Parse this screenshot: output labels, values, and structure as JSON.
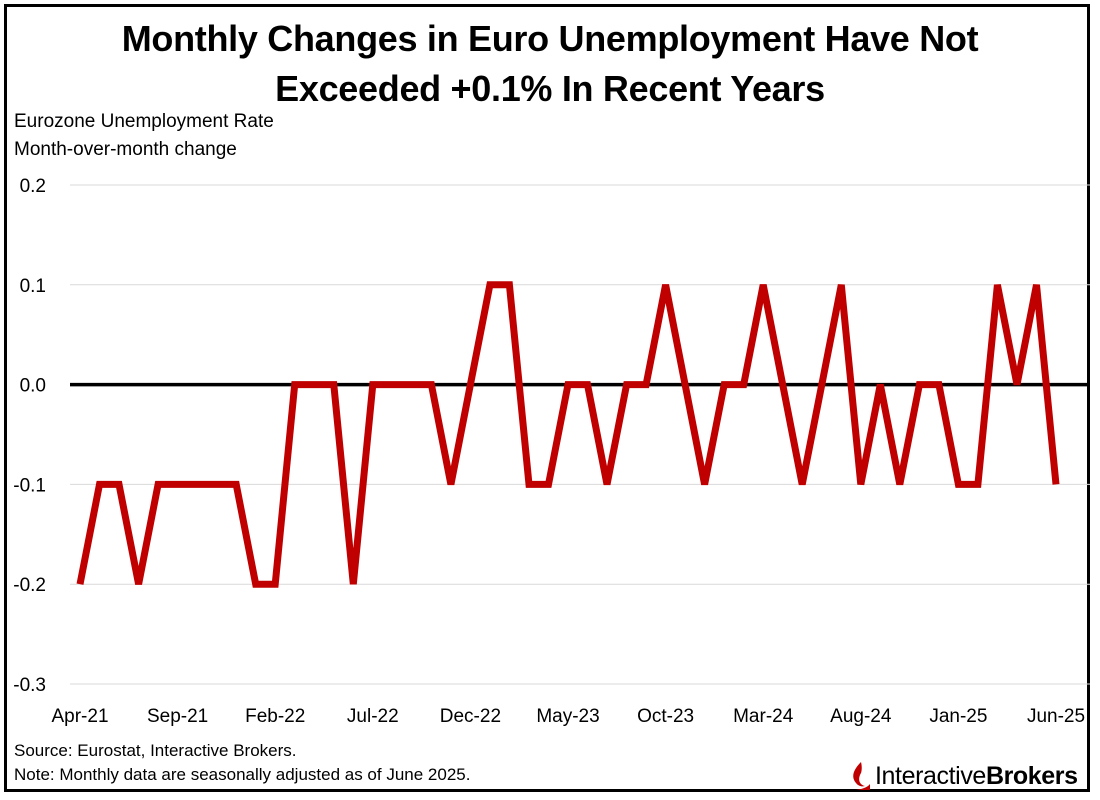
{
  "title_line1": "Monthly Changes in Euro Unemployment Have Not",
  "title_line2": "Exceeded +0.1% In Recent Years",
  "subtitle_line1": "Eurozone Unemployment Rate",
  "subtitle_line2": "Month-over-month change",
  "source": "Source: Eurostat, Interactive Brokers.",
  "note": "Note: Monthly data are seasonally adjusted as of June 2025.",
  "logo": {
    "part1": "Interactive",
    "part2": "Brokers"
  },
  "colors": {
    "line": "#c00000",
    "zero_line": "#000000",
    "grid": "#d9d9d9"
  },
  "chart_data": {
    "type": "line",
    "ylim": [
      -0.3,
      0.2
    ],
    "yticks": [
      0.2,
      0.1,
      0.0,
      -0.1,
      -0.2,
      -0.3
    ],
    "ytick_labels": [
      "0.2",
      "0.1",
      "0.0",
      "-0.1",
      "-0.2",
      "-0.3"
    ],
    "xtick_labels": [
      "Apr-21",
      "Sep-21",
      "Feb-22",
      "Jul-22",
      "Dec-22",
      "May-23",
      "Oct-23",
      "Mar-24",
      "Aug-24",
      "Jan-25",
      "Jun-25"
    ],
    "xtick_index": [
      0,
      5,
      10,
      15,
      20,
      25,
      30,
      35,
      40,
      45,
      50
    ],
    "series": [
      {
        "name": "Eurozone Unemployment Rate, month-over-month change",
        "x": [
          "Apr-21",
          "May-21",
          "Jun-21",
          "Jul-21",
          "Aug-21",
          "Sep-21",
          "Oct-21",
          "Nov-21",
          "Dec-21",
          "Jan-22",
          "Feb-22",
          "Mar-22",
          "Apr-22",
          "May-22",
          "Jun-22",
          "Jul-22",
          "Aug-22",
          "Sep-22",
          "Oct-22",
          "Nov-22",
          "Dec-22",
          "Jan-23",
          "Feb-23",
          "Mar-23",
          "Apr-23",
          "May-23",
          "Jun-23",
          "Jul-23",
          "Aug-23",
          "Sep-23",
          "Oct-23",
          "Nov-23",
          "Dec-23",
          "Jan-24",
          "Feb-24",
          "Mar-24",
          "Apr-24",
          "May-24",
          "Jun-24",
          "Jul-24",
          "Aug-24",
          "Sep-24",
          "Oct-24",
          "Nov-24",
          "Dec-24",
          "Jan-25",
          "Feb-25",
          "Mar-25",
          "Apr-25",
          "May-25",
          "Jun-25"
        ],
        "values": [
          -0.2,
          -0.1,
          -0.1,
          -0.2,
          -0.1,
          -0.1,
          -0.1,
          -0.1,
          -0.1,
          -0.2,
          -0.2,
          0.0,
          0.0,
          0.0,
          -0.2,
          0.0,
          0.0,
          0.0,
          0.0,
          -0.1,
          0.0,
          0.1,
          0.1,
          -0.1,
          -0.1,
          0.0,
          0.0,
          -0.1,
          0.0,
          0.0,
          0.1,
          0.0,
          -0.1,
          0.0,
          0.0,
          0.1,
          0.0,
          -0.1,
          0.0,
          0.1,
          -0.1,
          0.0,
          -0.1,
          0.0,
          0.0,
          -0.1,
          -0.1,
          0.1,
          0.0,
          0.1,
          -0.1
        ]
      }
    ],
    "xlabel": "",
    "ylabel": "Eurozone Unemployment Rate, Month-over-month change"
  }
}
